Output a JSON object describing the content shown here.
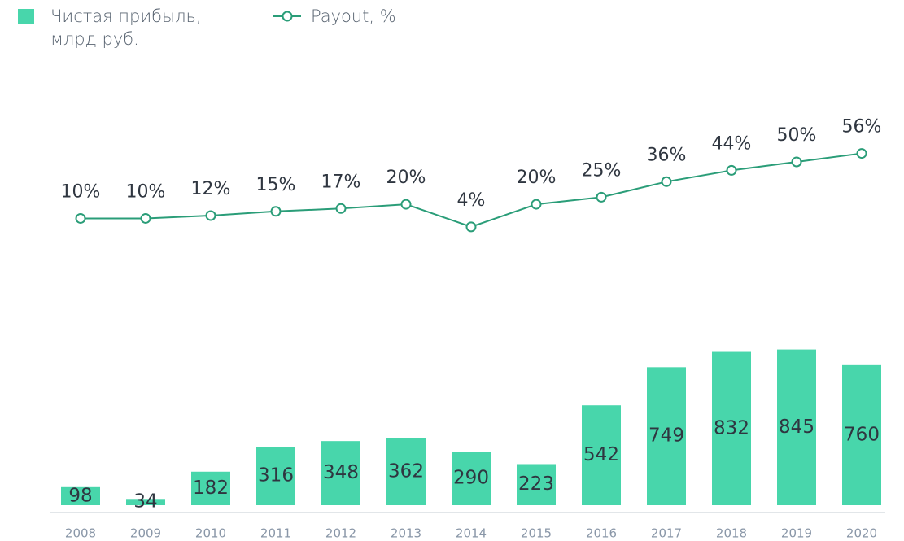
{
  "chart_data": {
    "type": "bar",
    "categories": [
      "2008",
      "2009",
      "2010",
      "2011",
      "2012",
      "2013",
      "2014",
      "2015",
      "2016",
      "2017",
      "2018",
      "2019",
      "2020"
    ],
    "series": [
      {
        "name": "Чистая прибыль, млрд руб.",
        "type": "bar",
        "color": "#48d6ab",
        "values": [
          98,
          34,
          182,
          316,
          348,
          362,
          290,
          223,
          542,
          749,
          832,
          845,
          760
        ]
      },
      {
        "name": "Payout, %",
        "type": "line",
        "axis": "y2",
        "color": "#2a9d78",
        "values": [
          10,
          10,
          12,
          15,
          17,
          20,
          4,
          20,
          25,
          36,
          44,
          50,
          56
        ],
        "value_labels": [
          "10%",
          "10%",
          "12%",
          "15%",
          "17%",
          "20%",
          "4%",
          "20%",
          "25%",
          "36%",
          "44%",
          "50%",
          "56%"
        ]
      }
    ],
    "ylim": [
      0,
      2300
    ],
    "y2lim": [
      -193,
      107
    ]
  }
}
